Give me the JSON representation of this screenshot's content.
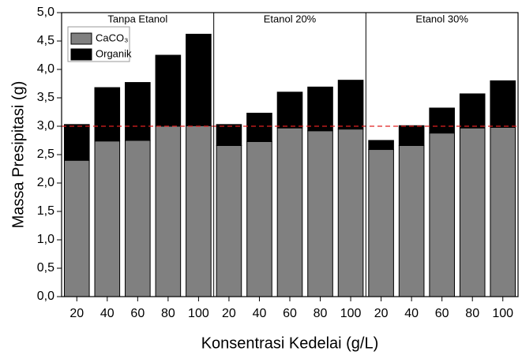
{
  "chart_data": {
    "type": "stacked-bar",
    "x_label": "Konsentrasi Kedelai (g/L)",
    "y_label": "Massa Presipitasi (g)",
    "categories": [
      "20",
      "40",
      "60",
      "80",
      "100",
      "20",
      "40",
      "60",
      "80",
      "100",
      "20",
      "40",
      "60",
      "80",
      "100"
    ],
    "groups": [
      "Tanpa Etanol",
      "Etanol 20%",
      "Etanol 30%"
    ],
    "series": [
      {
        "name": "CaCO₃",
        "color": "#808080",
        "values": [
          2.4,
          2.74,
          2.75,
          3.0,
          3.01,
          2.66,
          2.73,
          2.97,
          2.92,
          2.95,
          2.59,
          2.66,
          2.88,
          2.97,
          2.98
        ]
      },
      {
        "name": "Organik",
        "color": "#000000",
        "values": [
          0.63,
          0.94,
          1.02,
          1.25,
          1.61,
          0.37,
          0.5,
          0.63,
          0.77,
          0.86,
          0.16,
          0.35,
          0.44,
          0.6,
          0.82
        ]
      }
    ],
    "reference_line": {
      "value": 3.0,
      "color": "#e02020"
    },
    "ylim": [
      0,
      5
    ],
    "yticks": [
      {
        "value": 0,
        "label": "0,0"
      },
      {
        "value": 0.5,
        "label": "0,5"
      },
      {
        "value": 1,
        "label": "1,0"
      },
      {
        "value": 1.5,
        "label": "1,5"
      },
      {
        "value": 2,
        "label": "2,0"
      },
      {
        "value": 2.5,
        "label": "2,5"
      },
      {
        "value": 3,
        "label": "3,0"
      },
      {
        "value": 3.5,
        "label": "3,5"
      },
      {
        "value": 4,
        "label": "4,0"
      },
      {
        "value": 4.5,
        "label": "4,5"
      },
      {
        "value": 5,
        "label": "5,0"
      }
    ],
    "legend": "upper-left"
  }
}
